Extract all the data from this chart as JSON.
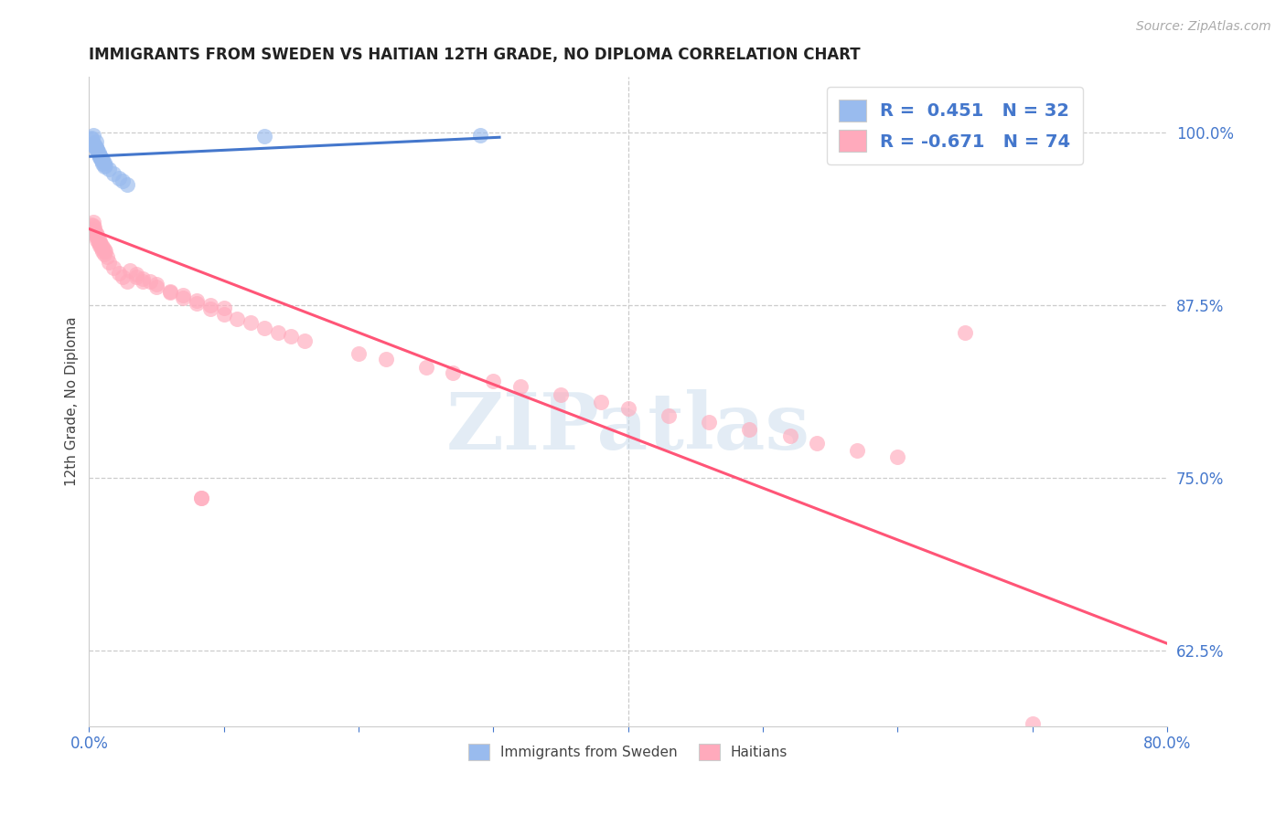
{
  "title": "IMMIGRANTS FROM SWEDEN VS HAITIAN 12TH GRADE, NO DIPLOMA CORRELATION CHART",
  "source": "Source: ZipAtlas.com",
  "ylabel_left": "12th Grade, No Diploma",
  "xlim": [
    0.0,
    0.8
  ],
  "ylim": [
    0.57,
    1.04
  ],
  "yticks_right": [
    0.625,
    0.75,
    0.875,
    1.0
  ],
  "yticklabels_right": [
    "62.5%",
    "75.0%",
    "87.5%",
    "100.0%"
  ],
  "legend_sweden_text": "R =  0.451   N = 32",
  "legend_haitian_text": "R = -0.671   N = 74",
  "legend_label_sweden": "Immigrants from Sweden",
  "legend_label_haitian": "Haitians",
  "sweden_color": "#99bbee",
  "haitian_color": "#ffaabc",
  "sweden_line_color": "#4477cc",
  "haitian_line_color": "#ff5577",
  "watermark": "ZIPatlas",
  "sweden_R": 0.451,
  "haitian_R": -0.671,
  "sweden_N": 32,
  "haitian_N": 74,
  "sw_x": [
    0.002,
    0.003,
    0.004,
    0.005,
    0.006,
    0.007,
    0.008,
    0.009,
    0.01,
    0.011,
    0.003,
    0.005,
    0.007,
    0.009,
    0.011,
    0.004,
    0.006,
    0.008,
    0.01,
    0.012,
    0.002,
    0.004,
    0.006,
    0.008,
    0.01,
    0.015,
    0.018,
    0.022,
    0.025,
    0.028,
    0.29,
    0.13
  ],
  "sw_y": [
    0.995,
    0.998,
    0.99,
    0.993,
    0.988,
    0.985,
    0.982,
    0.979,
    0.977,
    0.975,
    0.992,
    0.989,
    0.984,
    0.981,
    0.978,
    0.991,
    0.987,
    0.983,
    0.98,
    0.976,
    0.996,
    0.99,
    0.986,
    0.982,
    0.979,
    0.973,
    0.97,
    0.967,
    0.965,
    0.962,
    0.998,
    0.997
  ],
  "ht_x": [
    0.002,
    0.003,
    0.004,
    0.005,
    0.006,
    0.007,
    0.008,
    0.009,
    0.01,
    0.011,
    0.003,
    0.005,
    0.007,
    0.009,
    0.011,
    0.004,
    0.006,
    0.008,
    0.01,
    0.012,
    0.002,
    0.004,
    0.006,
    0.008,
    0.013,
    0.015,
    0.018,
    0.022,
    0.025,
    0.028,
    0.03,
    0.035,
    0.04,
    0.045,
    0.05,
    0.06,
    0.07,
    0.08,
    0.09,
    0.1,
    0.035,
    0.04,
    0.05,
    0.06,
    0.07,
    0.08,
    0.09,
    0.1,
    0.11,
    0.12,
    0.13,
    0.14,
    0.15,
    0.16,
    0.2,
    0.22,
    0.25,
    0.27,
    0.3,
    0.32,
    0.35,
    0.38,
    0.4,
    0.43,
    0.46,
    0.49,
    0.52,
    0.54,
    0.57,
    0.6,
    0.083,
    0.083,
    0.65,
    0.7
  ],
  "ht_y": [
    0.93,
    0.935,
    0.928,
    0.925,
    0.922,
    0.92,
    0.918,
    0.916,
    0.914,
    0.912,
    0.932,
    0.927,
    0.922,
    0.918,
    0.915,
    0.931,
    0.926,
    0.921,
    0.917,
    0.914,
    0.933,
    0.929,
    0.924,
    0.92,
    0.91,
    0.906,
    0.902,
    0.898,
    0.895,
    0.892,
    0.9,
    0.897,
    0.894,
    0.892,
    0.89,
    0.885,
    0.882,
    0.878,
    0.875,
    0.873,
    0.895,
    0.892,
    0.888,
    0.884,
    0.88,
    0.876,
    0.872,
    0.868,
    0.865,
    0.862,
    0.858,
    0.855,
    0.852,
    0.849,
    0.84,
    0.836,
    0.83,
    0.826,
    0.82,
    0.816,
    0.81,
    0.805,
    0.8,
    0.795,
    0.79,
    0.785,
    0.78,
    0.775,
    0.77,
    0.765,
    0.735,
    0.735,
    0.855,
    0.572
  ]
}
